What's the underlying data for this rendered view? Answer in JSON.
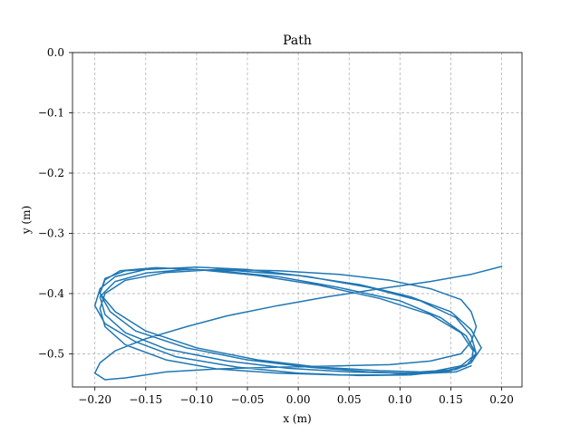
{
  "chart_data": {
    "type": "line",
    "title": "Path",
    "xlabel": "x (m)",
    "ylabel": "y (m)",
    "xlim": [
      -0.222,
      0.22
    ],
    "ylim": [
      -0.555,
      0.0
    ],
    "xticks": [
      -0.2,
      -0.15,
      -0.1,
      -0.05,
      0.0,
      0.05,
      0.1,
      0.15,
      0.2
    ],
    "xtick_labels": [
      "−0.20",
      "−0.15",
      "−0.10",
      "−0.05",
      "0.00",
      "0.05",
      "0.10",
      "0.15",
      "0.20"
    ],
    "yticks": [
      0.0,
      -0.1,
      -0.2,
      -0.3,
      -0.4,
      -0.5
    ],
    "ytick_labels": [
      "0.0",
      "−0.1",
      "−0.2",
      "−0.3",
      "−0.4",
      "−0.5"
    ],
    "grid": true,
    "color": "#1f77b4",
    "series": [
      {
        "x": [
          0.2,
          0.17,
          0.13,
          0.08,
          0.03,
          -0.02,
          -0.07,
          -0.11,
          -0.15,
          -0.18,
          -0.195,
          -0.2,
          -0.19,
          -0.17,
          -0.13,
          -0.08,
          -0.02,
          0.04,
          0.09,
          0.13,
          0.16,
          0.17,
          0.175,
          0.17,
          0.16,
          0.13,
          0.09,
          0.04,
          -0.02,
          -0.08,
          -0.13,
          -0.17,
          -0.19,
          -0.195,
          -0.19,
          -0.17,
          -0.13,
          -0.08,
          -0.02,
          0.04,
          0.09,
          0.13,
          0.16,
          0.175,
          0.17,
          0.155,
          0.12,
          0.07,
          0.01,
          -0.05,
          -0.1,
          -0.15,
          -0.18,
          -0.195,
          -0.2,
          -0.19,
          -0.16,
          -0.12,
          -0.06,
          0.0,
          0.06,
          0.11,
          0.15,
          0.17,
          0.18,
          0.17,
          0.15,
          0.11,
          0.06,
          0.0,
          -0.06,
          -0.11,
          -0.15,
          -0.18,
          -0.195,
          -0.19,
          -0.17,
          -0.13,
          -0.07,
          -0.01,
          0.05,
          0.1,
          0.14,
          0.165,
          0.175,
          0.165,
          0.14,
          0.1,
          0.04,
          -0.02,
          -0.08,
          -0.13,
          -0.17,
          -0.19,
          -0.195,
          -0.18,
          -0.15,
          -0.1,
          -0.04,
          0.02,
          0.08,
          0.12,
          0.155,
          0.17,
          0.172,
          0.16,
          0.13,
          0.08,
          0.02,
          -0.04,
          -0.1,
          -0.14,
          -0.175,
          -0.19,
          -0.195,
          -0.185,
          -0.16,
          -0.11,
          -0.05,
          0.01,
          0.07,
          0.12,
          0.155,
          0.17
        ],
        "y": [
          -0.355,
          -0.368,
          -0.38,
          -0.392,
          -0.405,
          -0.42,
          -0.437,
          -0.455,
          -0.475,
          -0.495,
          -0.515,
          -0.532,
          -0.543,
          -0.54,
          -0.53,
          -0.525,
          -0.522,
          -0.52,
          -0.518,
          -0.512,
          -0.5,
          -0.48,
          -0.455,
          -0.43,
          -0.41,
          -0.392,
          -0.378,
          -0.368,
          -0.362,
          -0.36,
          -0.365,
          -0.378,
          -0.4,
          -0.425,
          -0.455,
          -0.485,
          -0.51,
          -0.525,
          -0.532,
          -0.535,
          -0.535,
          -0.53,
          -0.52,
          -0.5,
          -0.47,
          -0.44,
          -0.412,
          -0.39,
          -0.372,
          -0.36,
          -0.356,
          -0.36,
          -0.372,
          -0.392,
          -0.42,
          -0.45,
          -0.48,
          -0.505,
          -0.522,
          -0.532,
          -0.536,
          -0.535,
          -0.528,
          -0.515,
          -0.49,
          -0.46,
          -0.43,
          -0.405,
          -0.385,
          -0.37,
          -0.362,
          -0.36,
          -0.366,
          -0.38,
          -0.405,
          -0.435,
          -0.465,
          -0.492,
          -0.512,
          -0.524,
          -0.53,
          -0.532,
          -0.53,
          -0.52,
          -0.5,
          -0.47,
          -0.44,
          -0.412,
          -0.39,
          -0.372,
          -0.362,
          -0.358,
          -0.362,
          -0.375,
          -0.4,
          -0.43,
          -0.462,
          -0.49,
          -0.51,
          -0.522,
          -0.528,
          -0.53,
          -0.526,
          -0.515,
          -0.495,
          -0.465,
          -0.435,
          -0.408,
          -0.386,
          -0.37,
          -0.36,
          -0.357,
          -0.362,
          -0.377,
          -0.4,
          -0.43,
          -0.462,
          -0.49,
          -0.51,
          -0.522,
          -0.53,
          -0.533,
          -0.53,
          -0.52
        ]
      }
    ]
  }
}
